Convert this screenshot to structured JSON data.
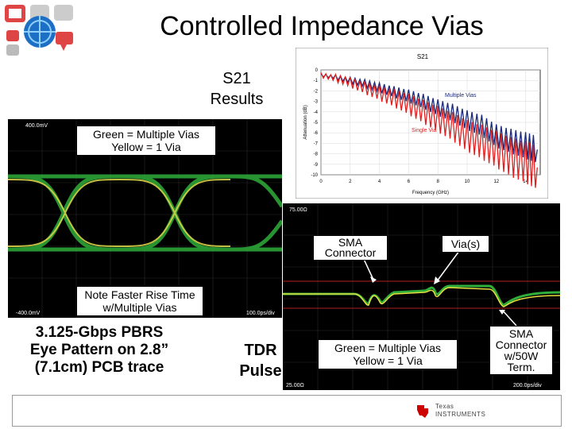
{
  "title": "Controlled Impedance Vias",
  "s21_label": {
    "line1": "S21",
    "line2": "Results"
  },
  "chart_data": {
    "type": "line",
    "title": "S21",
    "xlabel": "Frequency (GHz)",
    "ylabel": "Attenuation (dB)",
    "xlim": [
      0,
      15
    ],
    "ylim": [
      -10,
      0
    ],
    "xticks": [
      "0",
      "2",
      "4",
      "6",
      "8",
      "10",
      "12",
      "14"
    ],
    "yticks": [
      "0",
      "-1",
      "-2",
      "-3",
      "-4",
      "-5",
      "-6",
      "-7",
      "-8",
      "-9",
      "-10"
    ],
    "series": [
      {
        "name": "Multiple Vias",
        "color": "#1a2a7a",
        "x": [
          0,
          1,
          2,
          3,
          4,
          5,
          6,
          7,
          8,
          9,
          10,
          11,
          12,
          13,
          14,
          14.8
        ],
        "y": [
          -0.5,
          -0.7,
          -1.0,
          -1.3,
          -1.7,
          -2.1,
          -2.5,
          -3.0,
          -3.6,
          -4.1,
          -4.8,
          -5.3,
          -6.3,
          -6.8,
          -7.2,
          -7.6
        ]
      },
      {
        "name": "Single Via",
        "color": "#e02020",
        "x": [
          0,
          1,
          2,
          3,
          4,
          5,
          6,
          7,
          8,
          9,
          10,
          11,
          12,
          13,
          14,
          14.8
        ],
        "y": [
          -0.5,
          -0.8,
          -1.2,
          -1.7,
          -2.2,
          -2.7,
          -3.3,
          -4.0,
          -4.7,
          -5.4,
          -6.3,
          -6.9,
          -7.6,
          -8.3,
          -8.8,
          -9.3
        ]
      }
    ]
  },
  "eye": {
    "scale_top": "400.0mV",
    "scale_bottom": "-400.0mV",
    "time_bottom": "100.0ps/div",
    "legend_line1": "Green = Multiple Vias",
    "legend_line2": "Yellow = 1 Via",
    "note_line1": "Note Faster Rise Time",
    "note_line2": "w/Multiple Vias",
    "caption_line1": "3.125-Gbps PBRS",
    "caption_line2": "Eye Pattern on 2.8”",
    "caption_line3": "(7.1cm) PCB trace"
  },
  "tdr": {
    "label_line1": "TDR",
    "label_line2": "Pulse",
    "scale_top": "75.00Ω",
    "scale_bottom": "25.00Ω",
    "time_bottom": "200.0ps/div",
    "sma_label_line1": "SMA",
    "sma_label_line2": "Connector",
    "vias_label": "Via(s)",
    "legend_line1": "Green = Multiple Vias",
    "legend_line2": "Yellow = 1 Via",
    "term_line1": "SMA",
    "term_line2": "Connector",
    "term_line3": "w/50W",
    "term_line4": "Term."
  },
  "footer": {
    "brand_line1": "Texas",
    "brand_line2": "Instruments",
    "logo_color": "#cc0000"
  },
  "icons": {
    "top_left": "network-globe-icon"
  }
}
